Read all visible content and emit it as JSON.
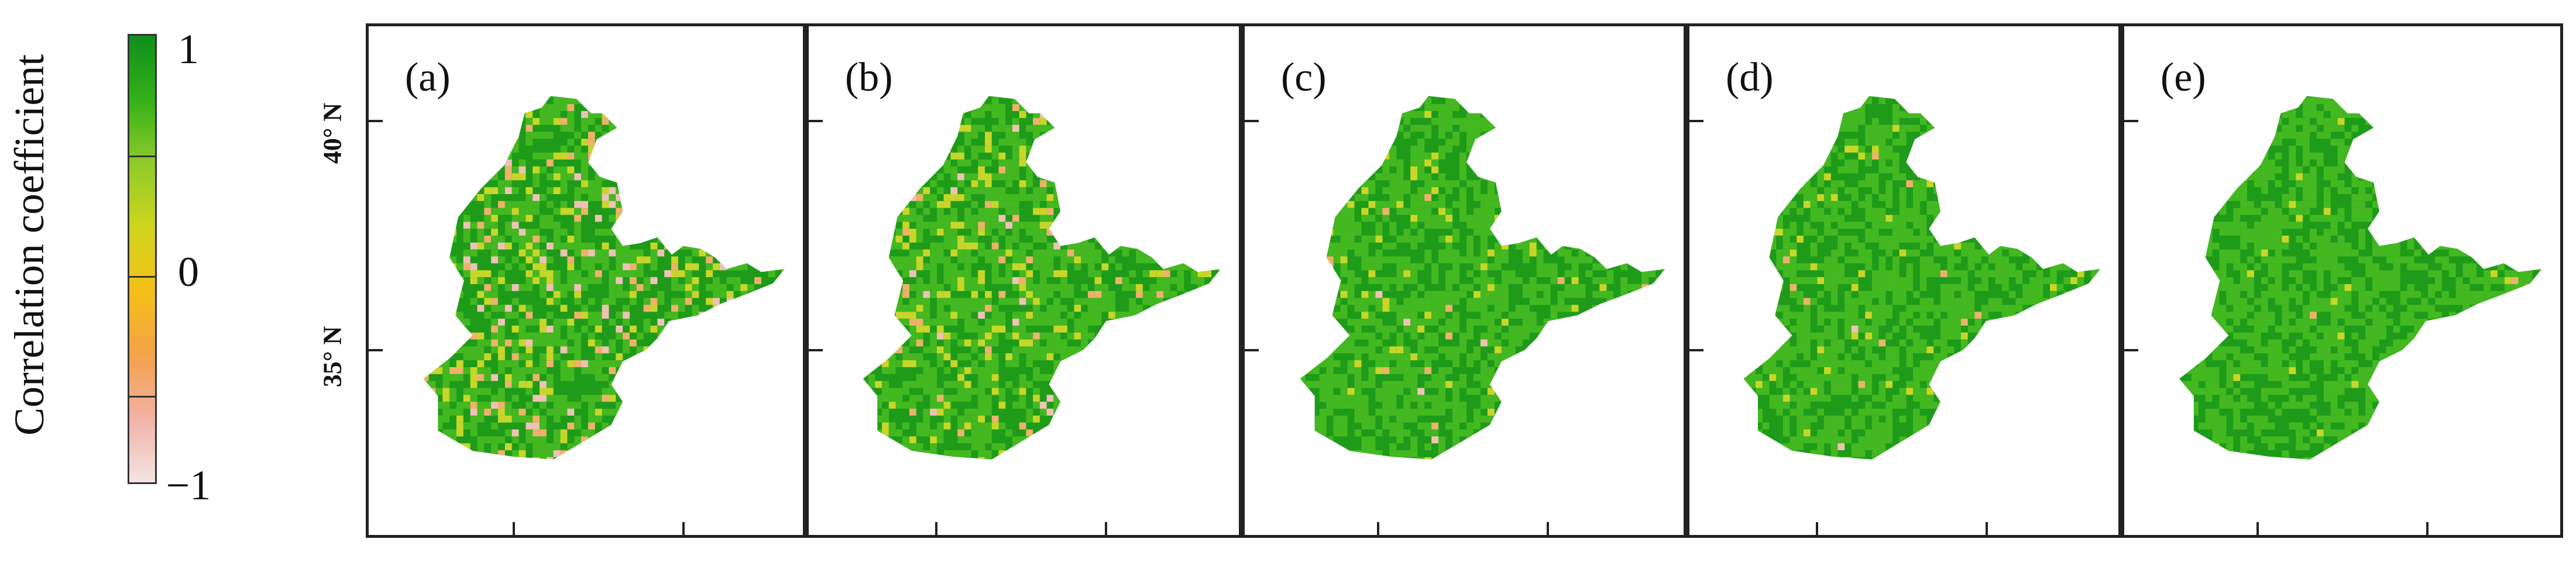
{
  "colorbar": {
    "title": "Correlation coefficient",
    "tick_labels": [
      "1",
      "0",
      "−1"
    ],
    "tick_values": [
      1,
      0,
      -1
    ],
    "range": [
      -1,
      1
    ],
    "colors": [
      "#f3e4e2",
      "#f2b2a6",
      "#f4a24a",
      "#f5c016",
      "#cfd51c",
      "#8fcb2a",
      "#34b018",
      "#0e8f1c"
    ]
  },
  "latitude_labels": [
    "40° N",
    "35° N"
  ],
  "panels": [
    {
      "label": "(a)",
      "low_correlation_share": "high"
    },
    {
      "label": "(b)",
      "low_correlation_share": "medium"
    },
    {
      "label": "(c)",
      "low_correlation_share": "low"
    },
    {
      "label": "(d)",
      "low_correlation_share": "low"
    },
    {
      "label": "(e)",
      "low_correlation_share": "very low"
    }
  ],
  "map_colors": {
    "high": "#1f9b1a",
    "mid": "#43b820",
    "yellow": "#c8d62a",
    "orange": "#eeb26a",
    "pink": "#efc2b6"
  }
}
